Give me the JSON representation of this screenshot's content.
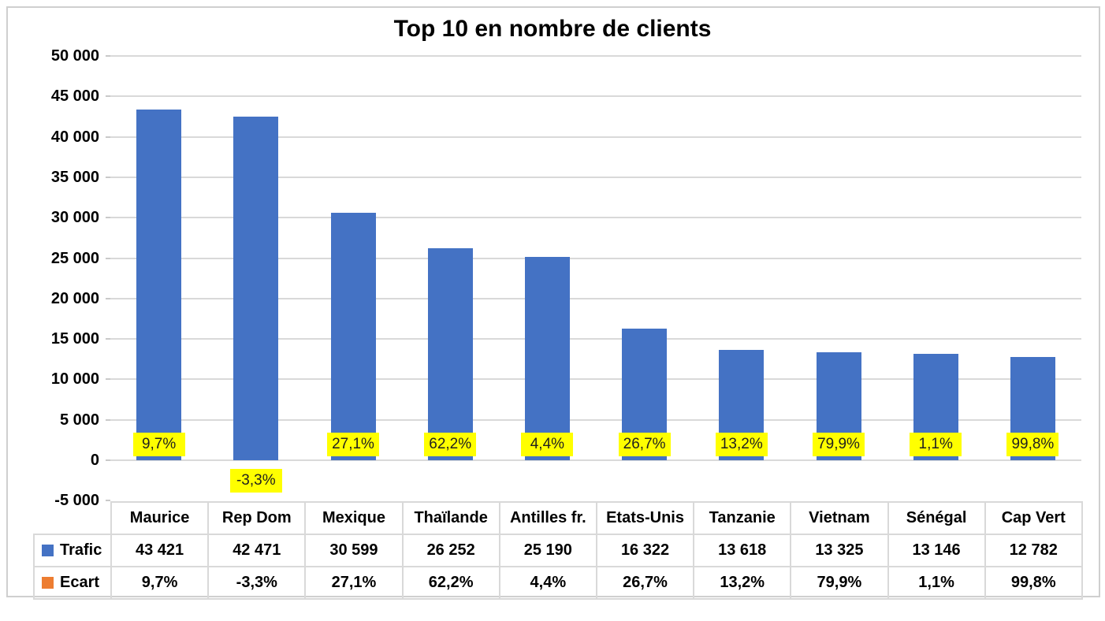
{
  "chart_data": {
    "type": "bar",
    "title": "Top 10 en nombre de clients",
    "categories": [
      "Maurice",
      "Rep Dom",
      "Mexique",
      "Thaïlande",
      "Antilles fr.",
      "Etats-Unis",
      "Tanzanie",
      "Vietnam",
      "Sénégal",
      "Cap Vert"
    ],
    "series": [
      {
        "name": "Trafic",
        "color": "#4472C4",
        "values": [
          43421,
          42471,
          30599,
          26252,
          25190,
          16322,
          13618,
          13325,
          13146,
          12782
        ],
        "display": [
          "43 421",
          "42 471",
          "30 599",
          "26 252",
          "25 190",
          "16 322",
          "13 618",
          "13 325",
          "13 146",
          "12 782"
        ]
      },
      {
        "name": "Ecart",
        "color": "#ED7D31",
        "values": [
          9.7,
          -3.3,
          27.1,
          62.2,
          4.4,
          26.7,
          13.2,
          79.9,
          1.1,
          99.8
        ],
        "display": [
          "9,7%",
          "-3,3%",
          "27,1%",
          "62,2%",
          "4,4%",
          "26,7%",
          "13,2%",
          "79,9%",
          "1,1%",
          "99,8%"
        ]
      }
    ],
    "data_labels": {
      "for_series": "Ecart",
      "background": "#FFFF00",
      "values": [
        "9,7%",
        "-3,3%",
        "27,1%",
        "62,2%",
        "4,4%",
        "26,7%",
        "13,2%",
        "79,9%",
        "1,1%",
        "99,8%"
      ]
    },
    "y_axis": {
      "min": -5000,
      "max": 50000,
      "step": 5000,
      "tick_labels": [
        "50 000",
        "45 000",
        "40 000",
        "35 000",
        "30 000",
        "25 000",
        "20 000",
        "15 000",
        "10 000",
        "5 000",
        "0",
        "-5 000"
      ]
    },
    "gridlines": true,
    "legend": {
      "position": "data-table-left",
      "entries": [
        {
          "label": "Trafic",
          "color": "#4472C4"
        },
        {
          "label": "Ecart",
          "color": "#ED7D31"
        }
      ]
    }
  },
  "colors": {
    "bar_fill": "#4472C4",
    "ecart_marker": "#ED7D31",
    "label_background": "#FFFF00",
    "gridline": "#D9D9D9",
    "table_border": "#D9D9D9",
    "frame_border": "#CFCFCF",
    "text": "#000000"
  }
}
